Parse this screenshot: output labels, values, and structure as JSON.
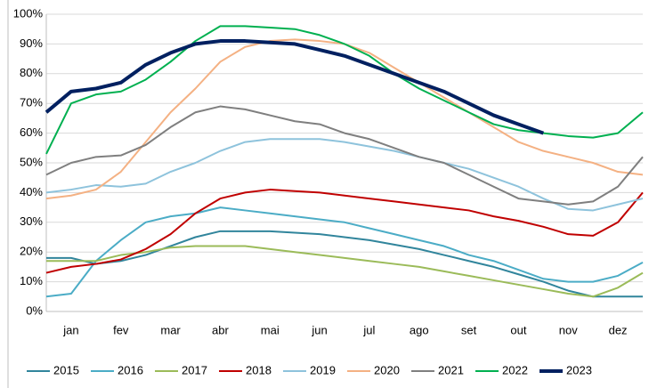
{
  "chart_data": {
    "type": "line",
    "x": [
      0,
      0.5,
      1,
      1.5,
      2,
      2.5,
      3,
      3.5,
      4,
      4.5,
      5,
      5.5,
      6,
      6.5,
      7,
      7.5,
      8,
      8.5,
      9,
      9.5,
      10,
      10.5,
      11,
      11.5,
      12
    ],
    "xlim": [
      0,
      12
    ],
    "xticks": [
      {
        "value": 0.5,
        "label": "jan"
      },
      {
        "value": 1.5,
        "label": "fev"
      },
      {
        "value": 2.5,
        "label": "mar"
      },
      {
        "value": 3.5,
        "label": "abr"
      },
      {
        "value": 4.5,
        "label": "mai"
      },
      {
        "value": 5.5,
        "label": "jun"
      },
      {
        "value": 6.5,
        "label": "jul"
      },
      {
        "value": 7.5,
        "label": "ago"
      },
      {
        "value": 8.5,
        "label": "set"
      },
      {
        "value": 9.5,
        "label": "out"
      },
      {
        "value": 10.5,
        "label": "nov"
      },
      {
        "value": 11.5,
        "label": "dez"
      }
    ],
    "ylim": [
      0,
      100
    ],
    "yticks": [
      {
        "value": 0,
        "label": "0%"
      },
      {
        "value": 10,
        "label": "10%"
      },
      {
        "value": 20,
        "label": "20%"
      },
      {
        "value": 30,
        "label": "30%"
      },
      {
        "value": 40,
        "label": "40%"
      },
      {
        "value": 50,
        "label": "50%"
      },
      {
        "value": 60,
        "label": "60%"
      },
      {
        "value": 70,
        "label": "70%"
      },
      {
        "value": 80,
        "label": "80%"
      },
      {
        "value": 90,
        "label": "90%"
      },
      {
        "value": 100,
        "label": "100%"
      }
    ],
    "grid": true,
    "legend": "bottom",
    "series": [
      {
        "name": "2015",
        "color": "#31859c",
        "width": 2,
        "values": [
          18,
          18,
          16,
          17,
          19,
          22,
          25,
          27,
          27,
          27,
          26.5,
          26,
          25,
          24,
          22.5,
          21,
          19,
          17,
          15,
          12.5,
          10,
          7,
          5,
          5,
          5
        ]
      },
      {
        "name": "2016",
        "color": "#4bacc6",
        "width": 2,
        "values": [
          5,
          6,
          17,
          24,
          30,
          32,
          33,
          35,
          34,
          33,
          32,
          31,
          30,
          28,
          26,
          24,
          22,
          19,
          17,
          14,
          11,
          10,
          10,
          12,
          16.5
        ]
      },
      {
        "name": "2017",
        "color": "#9bbb59",
        "width": 2,
        "values": [
          17,
          17,
          17,
          19,
          20,
          21.5,
          22,
          22,
          22,
          21,
          20,
          19,
          18,
          17,
          16,
          15,
          13.5,
          12,
          10.5,
          9,
          7.5,
          6,
          5,
          8,
          13
        ]
      },
      {
        "name": "2018",
        "color": "#c00000",
        "width": 2,
        "values": [
          13,
          15,
          16,
          17.5,
          21,
          26,
          33,
          38,
          40,
          41,
          40.5,
          40,
          39,
          38,
          37,
          36,
          35,
          34,
          32,
          30.5,
          28.5,
          26,
          25.5,
          30,
          40
        ]
      },
      {
        "name": "2019",
        "color": "#8ec3dc",
        "width": 2,
        "values": [
          40,
          41,
          42.5,
          42,
          43,
          47,
          50,
          54,
          57,
          58,
          58,
          58,
          57,
          55.5,
          54,
          52,
          50,
          48,
          45,
          42,
          38,
          34.5,
          34,
          36,
          38
        ]
      },
      {
        "name": "2020",
        "color": "#f4b183",
        "width": 2,
        "values": [
          38,
          39,
          41,
          47,
          57,
          67,
          75,
          84,
          89,
          91,
          91.5,
          91,
          90,
          87,
          82,
          77,
          72,
          67,
          62,
          57,
          54,
          52,
          50,
          47,
          46
        ]
      },
      {
        "name": "2021",
        "color": "#7f7f7f",
        "width": 2,
        "values": [
          46,
          50,
          52,
          52.5,
          56,
          62,
          67,
          69,
          68,
          66,
          64,
          63,
          60,
          58,
          55,
          52,
          50,
          46,
          42,
          38,
          37,
          36,
          37,
          42,
          52
        ]
      },
      {
        "name": "2022",
        "color": "#00b050",
        "width": 2,
        "values": [
          53,
          70,
          73,
          74,
          78,
          84,
          91,
          96,
          96,
          95.5,
          95,
          93,
          90,
          86,
          80,
          75,
          71,
          67,
          63,
          61,
          60,
          59,
          58.5,
          60,
          67
        ]
      },
      {
        "name": "2023",
        "color": "#002060",
        "width": 4,
        "values": [
          67,
          74,
          75,
          77,
          83,
          87,
          90,
          91,
          91,
          90.5,
          90,
          88,
          86,
          83,
          80,
          77,
          74,
          70,
          66,
          63,
          60,
          null,
          null,
          null,
          null
        ]
      }
    ]
  }
}
